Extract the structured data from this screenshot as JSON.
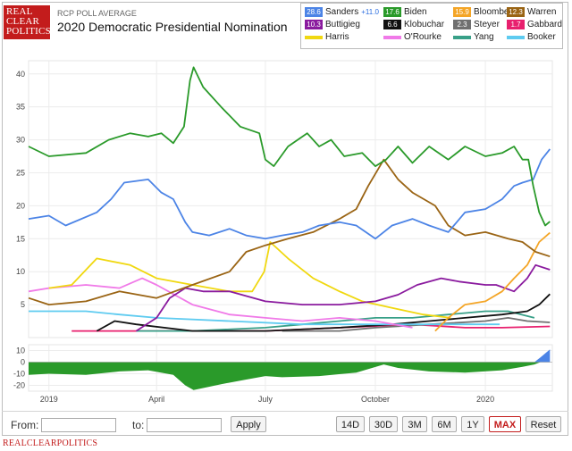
{
  "header": {
    "logo_lines": [
      "REAL",
      "CLEAR",
      "POLITICS"
    ],
    "subtitle": "RCP POLL AVERAGE",
    "title": "2020 Democratic Presidential Nomination"
  },
  "legend": [
    {
      "name": "Sanders",
      "value": "28.6",
      "spread": "+11.0",
      "color": "#4c84e6"
    },
    {
      "name": "Biden",
      "value": "17.6",
      "color": "#2a9a2a"
    },
    {
      "name": "Bloomberg",
      "value": "15.9",
      "color": "#f4a526"
    },
    {
      "name": "Warren",
      "value": "12.3",
      "color": "#9a6414"
    },
    {
      "name": "Buttigieg",
      "value": "10.3",
      "color": "#8a1a9e"
    },
    {
      "name": "Klobuchar",
      "value": "6.6",
      "color": "#111111"
    },
    {
      "name": "Steyer",
      "value": "2.3",
      "color": "#707070"
    },
    {
      "name": "Gabbard",
      "value": "1.7",
      "color": "#e8206e"
    },
    {
      "name": "Harris",
      "value": "",
      "color": "#f0d810"
    },
    {
      "name": "O'Rourke",
      "value": "",
      "color": "#f07ae8"
    },
    {
      "name": "Yang",
      "value": "",
      "color": "#38a088"
    },
    {
      "name": "Booker",
      "value": "",
      "color": "#5ecbf0"
    }
  ],
  "chart_data": {
    "type": "line",
    "title": "2020 Democratic Presidential Nomination",
    "ylim": [
      0,
      42
    ],
    "yticks": [
      5,
      10,
      15,
      20,
      25,
      30,
      35,
      40
    ],
    "xlim": [
      "2018-12-15",
      "2020-02-26"
    ],
    "xticks": [
      {
        "label": "2019",
        "date": "2019-01-01"
      },
      {
        "label": "April",
        "date": "2019-04-01"
      },
      {
        "label": "July",
        "date": "2019-07-01"
      },
      {
        "label": "October",
        "date": "2019-10-01"
      },
      {
        "label": "2020",
        "date": "2020-01-01"
      }
    ],
    "grid": true,
    "series": [
      {
        "name": "Biden",
        "color": "#2a9a2a",
        "points": [
          [
            "2018-12-15",
            29
          ],
          [
            "2019-01-01",
            27.5
          ],
          [
            "2019-02-01",
            28
          ],
          [
            "2019-02-20",
            30
          ],
          [
            "2019-03-10",
            31
          ],
          [
            "2019-03-25",
            30.5
          ],
          [
            "2019-04-05",
            31
          ],
          [
            "2019-04-15",
            29.5
          ],
          [
            "2019-04-24",
            32
          ],
          [
            "2019-04-29",
            39
          ],
          [
            "2019-05-02",
            41
          ],
          [
            "2019-05-10",
            38
          ],
          [
            "2019-05-25",
            35
          ],
          [
            "2019-06-10",
            32
          ],
          [
            "2019-06-26",
            31
          ],
          [
            "2019-07-01",
            27
          ],
          [
            "2019-07-08",
            26
          ],
          [
            "2019-07-20",
            29
          ],
          [
            "2019-08-05",
            31
          ],
          [
            "2019-08-15",
            29
          ],
          [
            "2019-08-25",
            30
          ],
          [
            "2019-09-05",
            27.5
          ],
          [
            "2019-09-20",
            28
          ],
          [
            "2019-10-01",
            26
          ],
          [
            "2019-10-10",
            27
          ],
          [
            "2019-10-20",
            29
          ],
          [
            "2019-11-01",
            26.5
          ],
          [
            "2019-11-15",
            29
          ],
          [
            "2019-12-01",
            27
          ],
          [
            "2019-12-15",
            29
          ],
          [
            "2020-01-01",
            27.5
          ],
          [
            "2020-01-15",
            28
          ],
          [
            "2020-01-25",
            29
          ],
          [
            "2020-02-01",
            27
          ],
          [
            "2020-02-06",
            27
          ],
          [
            "2020-02-10",
            23
          ],
          [
            "2020-02-15",
            19
          ],
          [
            "2020-02-20",
            17
          ],
          [
            "2020-02-24",
            17.6
          ]
        ]
      },
      {
        "name": "Sanders",
        "color": "#4c84e6",
        "points": [
          [
            "2018-12-15",
            18
          ],
          [
            "2019-01-01",
            18.5
          ],
          [
            "2019-01-15",
            17
          ],
          [
            "2019-02-10",
            19
          ],
          [
            "2019-02-22",
            21
          ],
          [
            "2019-03-05",
            23.5
          ],
          [
            "2019-03-25",
            24
          ],
          [
            "2019-04-05",
            22
          ],
          [
            "2019-04-15",
            21
          ],
          [
            "2019-04-25",
            17.5
          ],
          [
            "2019-05-01",
            16
          ],
          [
            "2019-05-15",
            15.5
          ],
          [
            "2019-06-01",
            16.5
          ],
          [
            "2019-06-15",
            15.5
          ],
          [
            "2019-07-01",
            15
          ],
          [
            "2019-07-15",
            15.5
          ],
          [
            "2019-08-01",
            16
          ],
          [
            "2019-08-15",
            17
          ],
          [
            "2019-09-01",
            17.5
          ],
          [
            "2019-09-15",
            17
          ],
          [
            "2019-10-01",
            15
          ],
          [
            "2019-10-15",
            17
          ],
          [
            "2019-11-01",
            18
          ],
          [
            "2019-11-15",
            17
          ],
          [
            "2019-12-01",
            16
          ],
          [
            "2019-12-15",
            19
          ],
          [
            "2020-01-01",
            19.5
          ],
          [
            "2020-01-15",
            21
          ],
          [
            "2020-01-25",
            23
          ],
          [
            "2020-02-01",
            23.5
          ],
          [
            "2020-02-10",
            24
          ],
          [
            "2020-02-17",
            27
          ],
          [
            "2020-02-24",
            28.6
          ]
        ]
      },
      {
        "name": "Warren",
        "color": "#9a6414",
        "points": [
          [
            "2018-12-15",
            6
          ],
          [
            "2019-01-01",
            5
          ],
          [
            "2019-02-01",
            5.5
          ],
          [
            "2019-03-01",
            7
          ],
          [
            "2019-04-01",
            6
          ],
          [
            "2019-05-01",
            8
          ],
          [
            "2019-06-01",
            10
          ],
          [
            "2019-06-15",
            13
          ],
          [
            "2019-07-01",
            14
          ],
          [
            "2019-07-20",
            15
          ],
          [
            "2019-08-10",
            16
          ],
          [
            "2019-09-01",
            18
          ],
          [
            "2019-09-15",
            19.5
          ],
          [
            "2019-09-25",
            23
          ],
          [
            "2019-10-08",
            27
          ],
          [
            "2019-10-20",
            24
          ],
          [
            "2019-11-01",
            22
          ],
          [
            "2019-11-20",
            20
          ],
          [
            "2019-12-01",
            17
          ],
          [
            "2019-12-15",
            15.5
          ],
          [
            "2020-01-01",
            16
          ],
          [
            "2020-01-20",
            15
          ],
          [
            "2020-02-01",
            14.5
          ],
          [
            "2020-02-12",
            13
          ],
          [
            "2020-02-24",
            12.3
          ]
        ]
      },
      {
        "name": "Bloomberg",
        "color": "#f4a526",
        "points": [
          [
            "2019-11-20",
            1
          ],
          [
            "2019-12-01",
            3
          ],
          [
            "2019-12-15",
            5
          ],
          [
            "2020-01-01",
            5.5
          ],
          [
            "2020-01-15",
            7
          ],
          [
            "2020-01-25",
            9
          ],
          [
            "2020-02-05",
            11
          ],
          [
            "2020-02-15",
            14.5
          ],
          [
            "2020-02-24",
            15.9
          ]
        ]
      },
      {
        "name": "Buttigieg",
        "color": "#8a1a9e",
        "points": [
          [
            "2019-03-15",
            1
          ],
          [
            "2019-04-01",
            3
          ],
          [
            "2019-04-12",
            6
          ],
          [
            "2019-04-25",
            7.5
          ],
          [
            "2019-05-10",
            7
          ],
          [
            "2019-06-01",
            7
          ],
          [
            "2019-07-01",
            5.5
          ],
          [
            "2019-08-01",
            5
          ],
          [
            "2019-09-01",
            5
          ],
          [
            "2019-10-01",
            5.5
          ],
          [
            "2019-10-20",
            6.5
          ],
          [
            "2019-11-05",
            8
          ],
          [
            "2019-11-25",
            9
          ],
          [
            "2019-12-10",
            8.5
          ],
          [
            "2020-01-01",
            8
          ],
          [
            "2020-01-10",
            8
          ],
          [
            "2020-01-25",
            7
          ],
          [
            "2020-02-05",
            9
          ],
          [
            "2020-02-12",
            11
          ],
          [
            "2020-02-24",
            10.3
          ]
        ]
      },
      {
        "name": "Harris",
        "color": "#f0d810",
        "points": [
          [
            "2019-01-01",
            7.5
          ],
          [
            "2019-01-20",
            8
          ],
          [
            "2019-02-10",
            12
          ],
          [
            "2019-03-10",
            11
          ],
          [
            "2019-04-01",
            9
          ],
          [
            "2019-05-01",
            8
          ],
          [
            "2019-06-01",
            7
          ],
          [
            "2019-06-20",
            7
          ],
          [
            "2019-06-30",
            10
          ],
          [
            "2019-07-05",
            14.5
          ],
          [
            "2019-07-20",
            12
          ],
          [
            "2019-08-10",
            9
          ],
          [
            "2019-09-01",
            7
          ],
          [
            "2019-09-20",
            5.5
          ],
          [
            "2019-10-15",
            4.5
          ],
          [
            "2019-11-10",
            3.5
          ],
          [
            "2019-12-03",
            3
          ]
        ]
      },
      {
        "name": "O'Rourke",
        "color": "#f07ae8",
        "points": [
          [
            "2018-12-15",
            7
          ],
          [
            "2019-01-01",
            7.5
          ],
          [
            "2019-02-01",
            8
          ],
          [
            "2019-03-01",
            7.5
          ],
          [
            "2019-03-20",
            9
          ],
          [
            "2019-04-01",
            8
          ],
          [
            "2019-05-01",
            5
          ],
          [
            "2019-06-01",
            3.5
          ],
          [
            "2019-07-01",
            3
          ],
          [
            "2019-08-01",
            2.5
          ],
          [
            "2019-09-01",
            3
          ],
          [
            "2019-10-01",
            2.5
          ],
          [
            "2019-11-01",
            1.5
          ]
        ]
      },
      {
        "name": "Booker",
        "color": "#5ecbf0",
        "points": [
          [
            "2018-12-15",
            4
          ],
          [
            "2019-01-01",
            4
          ],
          [
            "2019-02-01",
            4
          ],
          [
            "2019-03-01",
            3.5
          ],
          [
            "2019-04-01",
            3
          ],
          [
            "2019-06-01",
            2.5
          ],
          [
            "2019-08-01",
            2
          ],
          [
            "2019-10-01",
            2
          ],
          [
            "2019-12-01",
            2
          ],
          [
            "2020-01-13",
            2
          ]
        ]
      },
      {
        "name": "Klobuchar",
        "color": "#111111",
        "points": [
          [
            "2019-02-10",
            1
          ],
          [
            "2019-02-25",
            2.5
          ],
          [
            "2019-03-15",
            2
          ],
          [
            "2019-05-01",
            1
          ],
          [
            "2019-07-01",
            1
          ],
          [
            "2019-09-01",
            1.5
          ],
          [
            "2019-10-15",
            2
          ],
          [
            "2019-11-15",
            2.5
          ],
          [
            "2019-12-15",
            3
          ],
          [
            "2020-01-15",
            3.5
          ],
          [
            "2020-02-05",
            4
          ],
          [
            "2020-02-15",
            5
          ],
          [
            "2020-02-24",
            6.6
          ]
        ]
      },
      {
        "name": "Yang",
        "color": "#38a088",
        "points": [
          [
            "2019-03-15",
            1
          ],
          [
            "2019-05-01",
            1
          ],
          [
            "2019-07-01",
            1.5
          ],
          [
            "2019-08-01",
            2
          ],
          [
            "2019-09-01",
            2.5
          ],
          [
            "2019-10-01",
            3
          ],
          [
            "2019-11-01",
            3
          ],
          [
            "2019-12-01",
            3.5
          ],
          [
            "2020-01-01",
            4
          ],
          [
            "2020-01-20",
            4
          ],
          [
            "2020-02-11",
            3
          ]
        ]
      },
      {
        "name": "Steyer",
        "color": "#707070",
        "points": [
          [
            "2019-07-15",
            1
          ],
          [
            "2019-09-01",
            1
          ],
          [
            "2019-10-01",
            1.5
          ],
          [
            "2019-11-15",
            2
          ],
          [
            "2020-01-01",
            2.5
          ],
          [
            "2020-01-20",
            3
          ],
          [
            "2020-02-05",
            2.5
          ],
          [
            "2020-02-24",
            2.3
          ]
        ]
      },
      {
        "name": "Gabbard",
        "color": "#e8206e",
        "points": [
          [
            "2019-01-20",
            1
          ],
          [
            "2019-04-01",
            1
          ],
          [
            "2019-07-01",
            1
          ],
          [
            "2019-09-01",
            1.5
          ],
          [
            "2019-11-01",
            2
          ],
          [
            "2019-12-15",
            1.5
          ],
          [
            "2020-01-15",
            1.5
          ],
          [
            "2020-02-24",
            1.7
          ]
        ]
      }
    ],
    "spread": {
      "name": "Spread",
      "ylim": [
        -25,
        15
      ],
      "yticks": [
        10,
        0,
        -10,
        -20
      ],
      "points": [
        [
          "2018-12-15",
          -11
        ],
        [
          "2019-01-01",
          -10
        ],
        [
          "2019-02-01",
          -11
        ],
        [
          "2019-03-01",
          -8
        ],
        [
          "2019-03-25",
          -7
        ],
        [
          "2019-04-15",
          -11
        ],
        [
          "2019-04-25",
          -20
        ],
        [
          "2019-05-02",
          -24
        ],
        [
          "2019-05-25",
          -19
        ],
        [
          "2019-06-15",
          -15
        ],
        [
          "2019-07-01",
          -12
        ],
        [
          "2019-07-15",
          -13
        ],
        [
          "2019-08-15",
          -12
        ],
        [
          "2019-09-15",
          -9
        ],
        [
          "2019-10-08",
          -2
        ],
        [
          "2019-10-20",
          -5
        ],
        [
          "2019-11-15",
          -8
        ],
        [
          "2019-12-15",
          -9
        ],
        [
          "2020-01-15",
          -7
        ],
        [
          "2020-02-01",
          -4
        ],
        [
          "2020-02-11",
          -2
        ],
        [
          "2020-02-16",
          4
        ],
        [
          "2020-02-24",
          11
        ]
      ]
    }
  },
  "controls": {
    "from_label": "From:",
    "from_value": "",
    "to_label": "to:",
    "to_value": "",
    "apply": "Apply",
    "ranges": [
      "14D",
      "30D",
      "3M",
      "6M",
      "1Y",
      "MAX",
      "Reset"
    ],
    "active_range": "MAX"
  },
  "footer": {
    "brand": "REALCLEARPOLITICS"
  }
}
